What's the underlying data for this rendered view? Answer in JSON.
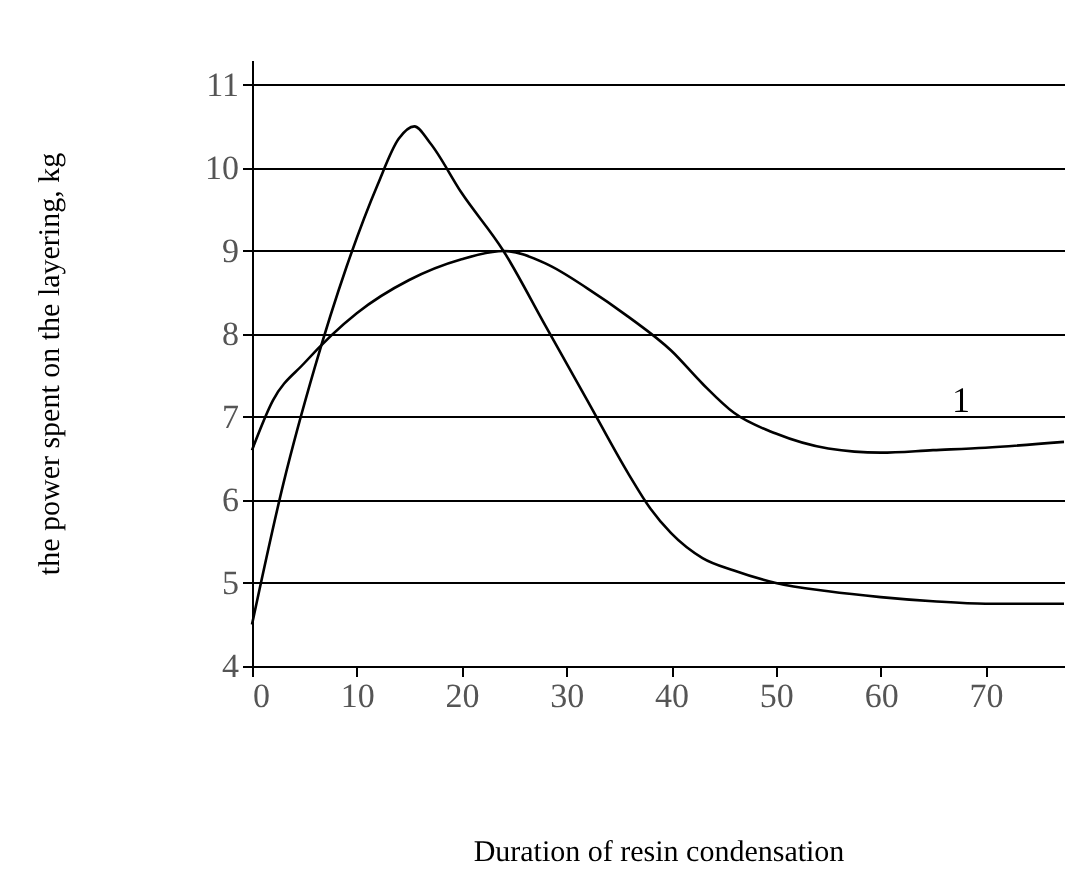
{
  "chart_data": {
    "type": "line",
    "xlabel": "Duration of resin condensation",
    "ylabel": "the power spent on the layering, kg",
    "xlim": [
      0,
      77.5
    ],
    "xticks": [
      0,
      10,
      20,
      30,
      40,
      50,
      60,
      70
    ],
    "ylim": [
      4,
      11.3
    ],
    "yticks": [
      4,
      5,
      6,
      7,
      8,
      9,
      10,
      11
    ],
    "grid": "y",
    "legend": false,
    "series": [
      {
        "color": "#000000",
        "x": [
          0,
          3,
          6,
          9,
          12,
          14,
          15.5,
          17,
          20,
          24,
          28,
          32,
          36,
          38,
          40,
          43,
          46,
          50,
          55,
          60,
          65,
          70,
          77.5
        ],
        "values": [
          4.5,
          6.2,
          7.6,
          8.8,
          9.8,
          10.35,
          10.5,
          10.3,
          9.7,
          9.0,
          8.1,
          7.2,
          6.3,
          5.9,
          5.6,
          5.3,
          5.15,
          5.0,
          4.9,
          4.83,
          4.78,
          4.75,
          4.75
        ]
      },
      {
        "name": "1",
        "color": "#000000",
        "x": [
          0,
          2,
          5,
          10,
          15,
          20,
          24,
          28,
          32,
          36,
          40,
          43,
          46,
          50,
          55,
          60,
          65,
          70,
          77.5
        ],
        "values": [
          6.6,
          7.2,
          7.65,
          8.25,
          8.65,
          8.9,
          9.0,
          8.85,
          8.55,
          8.2,
          7.8,
          7.4,
          7.05,
          6.8,
          6.62,
          6.57,
          6.6,
          6.63,
          6.7
        ]
      }
    ]
  }
}
